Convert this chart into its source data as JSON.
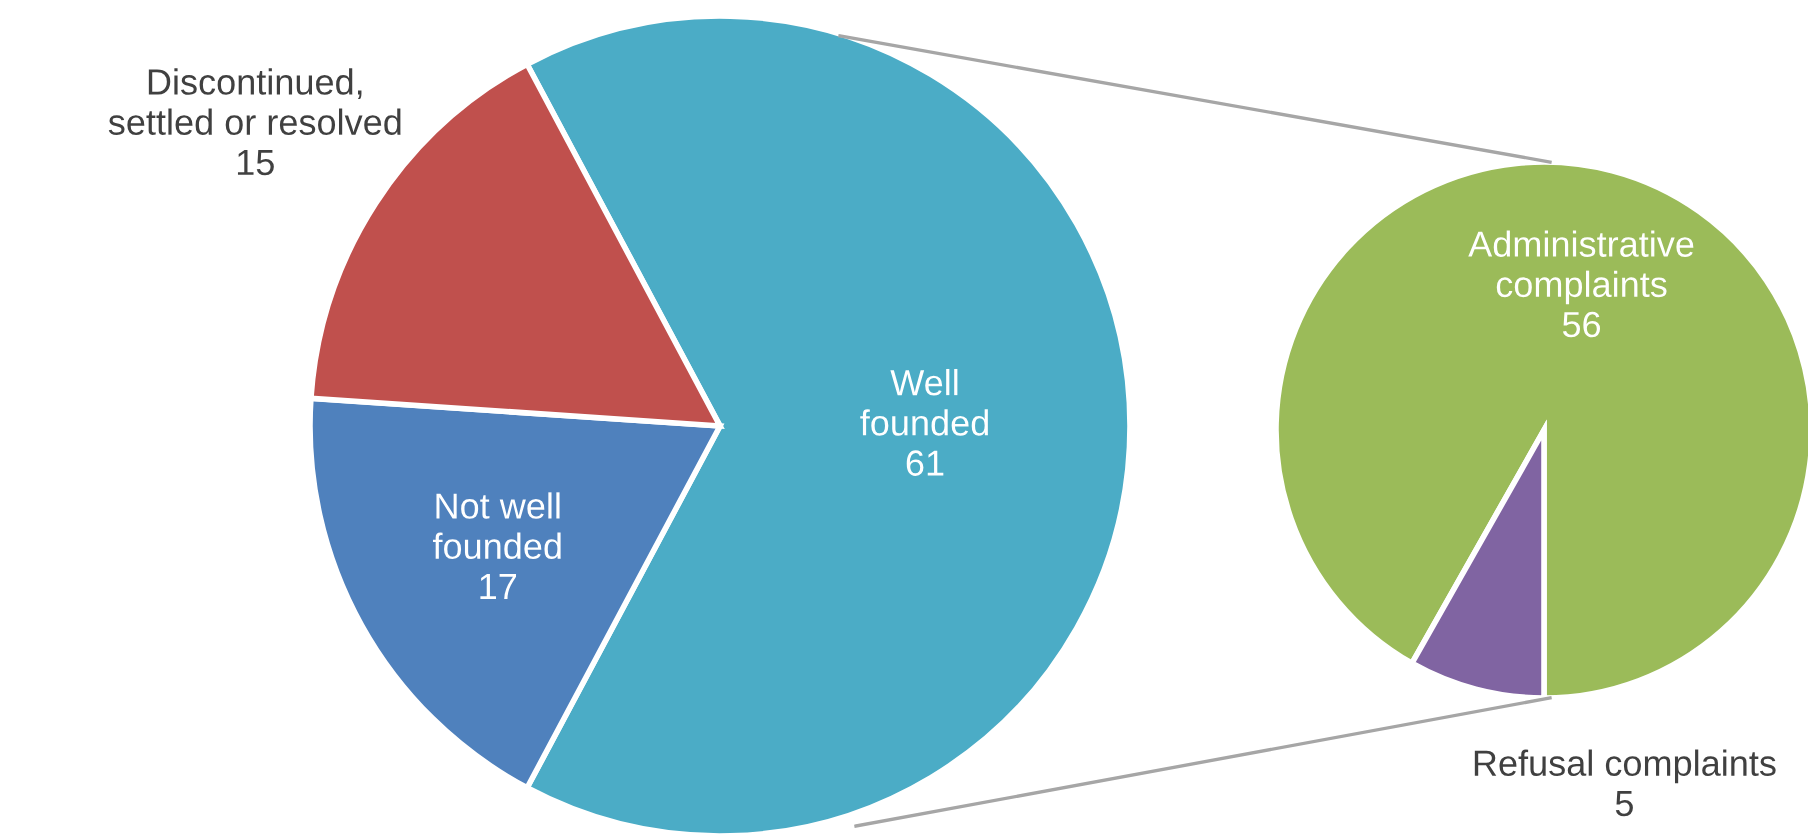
{
  "chart_data": [
    {
      "type": "pie",
      "categories": [
        "Well\nfounded",
        "Not well\nfounded",
        "Discontinued,\nsettled or resolved"
      ],
      "values": [
        61,
        17,
        15
      ],
      "colors": [
        "#4bacc6",
        "#4f81bd",
        "#c0504d"
      ],
      "data_labels": true
    },
    {
      "type": "pie",
      "categories": [
        "Administrative\ncomplaints",
        "Refusal complaints"
      ],
      "values": [
        56,
        5
      ],
      "colors": [
        "#9bbb59",
        "#8064a2"
      ],
      "data_labels": true
    }
  ]
}
